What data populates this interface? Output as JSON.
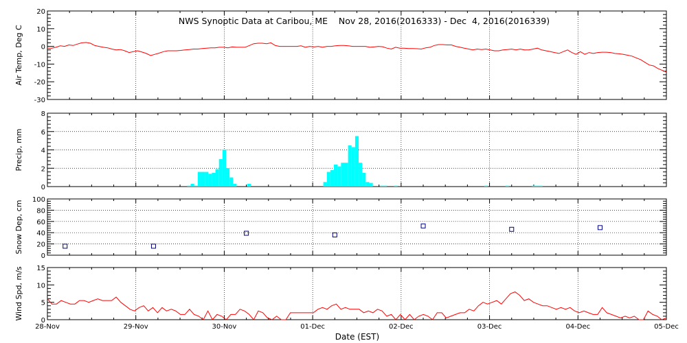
{
  "chart_data": {
    "title": "NWS Synoptic Data at Caribou, ME    Nov 28, 2016(2016333) - Dec  4, 2016(2016339)",
    "xlabel": "Date (EST)",
    "x_ticks": [
      "28-Nov",
      "29-Nov",
      "30-Nov",
      "01-Dec",
      "02-Dec",
      "03-Dec",
      "04-Dec",
      "05-Dec"
    ],
    "xlim_days": [
      0,
      7
    ],
    "panels": [
      {
        "type": "line",
        "ylabel": "Air Temp, Deg C",
        "ylim": [
          -30,
          20
        ],
        "yticks": [
          20,
          10,
          0,
          -10,
          -20,
          -30
        ],
        "color": "#ff0000",
        "values": [
          -1,
          -1,
          -0.5,
          0.3,
          0,
          0.8,
          0.5,
          1.3,
          2,
          2.2,
          1.8,
          0.5,
          0,
          -0.5,
          -0.8,
          -1.5,
          -2,
          -1.8,
          -2.5,
          -3.5,
          -3,
          -2.5,
          -3.2,
          -4,
          -5.2,
          -4.5,
          -3.8,
          -3,
          -2.5,
          -2.5,
          -2.5,
          -2.3,
          -2,
          -1.8,
          -1.5,
          -1.5,
          -1.2,
          -1,
          -0.8,
          -0.8,
          -0.5,
          -0.5,
          -0.8,
          -0.3,
          -0.5,
          -0.5,
          -0.5,
          0.5,
          1.5,
          1.8,
          1.8,
          1.5,
          2,
          0.5,
          0,
          0,
          0,
          0,
          0,
          0.3,
          -0.5,
          0,
          -0.3,
          0,
          -0.5,
          0,
          0,
          0.3,
          0.5,
          0.5,
          0.3,
          0,
          0,
          0,
          0,
          -0.5,
          -0.3,
          0,
          -0.2,
          -1,
          -1.5,
          -0.5,
          -1,
          -1,
          -1.2,
          -1.2,
          -1.3,
          -1.5,
          -0.8,
          -0.5,
          0.5,
          1,
          1,
          0.8,
          0.8,
          0,
          -0.5,
          -1,
          -1.5,
          -2,
          -1.5,
          -1.8,
          -1.5,
          -2,
          -2.5,
          -2.5,
          -2,
          -1.8,
          -1.5,
          -2,
          -1.5,
          -2,
          -2,
          -1.5,
          -1,
          -2,
          -2.5,
          -3,
          -3.5,
          -4,
          -3,
          -2,
          -3.5,
          -4.5,
          -3,
          -4.5,
          -3.5,
          -4,
          -3.5,
          -3.3,
          -3.3,
          -3.5,
          -4,
          -4.2,
          -4.5,
          -5,
          -5.5,
          -6.5,
          -7.5,
          -9,
          -10.5,
          -11,
          -12.5,
          -13.5,
          -14.5
        ]
      },
      {
        "type": "bar",
        "ylabel": "Precip, mm",
        "ylim": [
          0,
          8
        ],
        "yticks": [
          8,
          6,
          4,
          2,
          0
        ],
        "color": "#00ffff",
        "bars": [
          [
            1.58,
            0.1
          ],
          [
            1.62,
            0.3
          ],
          [
            1.66,
            0.1
          ],
          [
            1.7,
            1.6
          ],
          [
            1.74,
            1.6
          ],
          [
            1.78,
            1.6
          ],
          [
            1.82,
            1.4
          ],
          [
            1.86,
            1.5
          ],
          [
            1.9,
            1.9
          ],
          [
            1.94,
            3.0
          ],
          [
            1.98,
            4.0
          ],
          [
            2.02,
            2.0
          ],
          [
            2.06,
            1.0
          ],
          [
            2.1,
            0.3
          ],
          [
            2.26,
            0.3
          ],
          [
            3.12,
            0.5
          ],
          [
            3.16,
            1.6
          ],
          [
            3.2,
            1.8
          ],
          [
            3.24,
            2.4
          ],
          [
            3.28,
            2.2
          ],
          [
            3.32,
            2.6
          ],
          [
            3.36,
            2.6
          ],
          [
            3.4,
            4.5
          ],
          [
            3.44,
            4.3
          ],
          [
            3.48,
            5.5
          ],
          [
            3.52,
            2.6
          ],
          [
            3.56,
            1.5
          ],
          [
            3.6,
            0.5
          ],
          [
            3.64,
            0.4
          ],
          [
            3.76,
            0.1
          ],
          [
            3.8,
            0.1
          ],
          [
            3.92,
            0.1
          ],
          [
            4.94,
            0.1
          ],
          [
            5.18,
            0.1
          ],
          [
            5.48,
            0.1
          ],
          [
            5.52,
            0.1
          ],
          [
            5.56,
            0.1
          ]
        ]
      },
      {
        "type": "scatter",
        "ylabel": "Snow Dep, cm",
        "ylim": [
          0,
          100
        ],
        "yticks": [
          100,
          80,
          60,
          40,
          20,
          0
        ],
        "color": "#000080",
        "points": [
          [
            0.2,
            16
          ],
          [
            1.2,
            16
          ],
          [
            2.25,
            39
          ],
          [
            3.25,
            36
          ],
          [
            4.25,
            52
          ],
          [
            5.25,
            46
          ],
          [
            6.25,
            49
          ]
        ]
      },
      {
        "type": "line",
        "ylabel": "Wind Spd, m/s",
        "ylim": [
          0,
          15
        ],
        "yticks": [
          15,
          10,
          5,
          0
        ],
        "color": "#ff0000",
        "values": [
          6,
          4.5,
          4.5,
          5.5,
          5,
          4.5,
          4.5,
          5.5,
          5.5,
          5,
          5.5,
          6,
          5.5,
          5.5,
          5.5,
          6.5,
          5,
          4,
          3,
          2.5,
          3.5,
          4,
          2.5,
          3.5,
          2,
          3.5,
          2.5,
          3,
          2.5,
          1.5,
          1.5,
          3,
          1.5,
          1,
          0,
          2.5,
          0,
          1.5,
          1,
          0,
          1.5,
          1.5,
          3,
          2.5,
          1.5,
          0,
          2.5,
          2,
          0.5,
          0,
          1,
          0,
          0,
          2,
          2,
          2,
          2,
          2,
          2,
          3,
          3.5,
          3,
          4,
          4.5,
          3,
          3.5,
          3,
          3,
          3,
          2,
          2.5,
          2,
          3,
          2.5,
          1,
          1.5,
          0,
          1.5,
          0,
          1.5,
          0,
          1,
          1.5,
          1,
          0,
          2,
          2,
          0.5,
          1,
          1.5,
          2,
          2,
          3,
          2.5,
          4,
          5,
          4.5,
          5,
          5.5,
          4.5,
          6,
          7.5,
          8,
          7,
          5.5,
          6,
          5,
          4.5,
          4,
          4,
          3.5,
          3,
          3.5,
          3,
          3.5,
          2.5,
          2,
          2.5,
          2,
          1.5,
          1.5,
          3.5,
          2,
          1.5,
          1,
          0.5,
          1,
          0.5,
          1,
          0,
          0,
          2.5,
          1.5,
          1,
          0,
          0.5
        ]
      }
    ]
  }
}
